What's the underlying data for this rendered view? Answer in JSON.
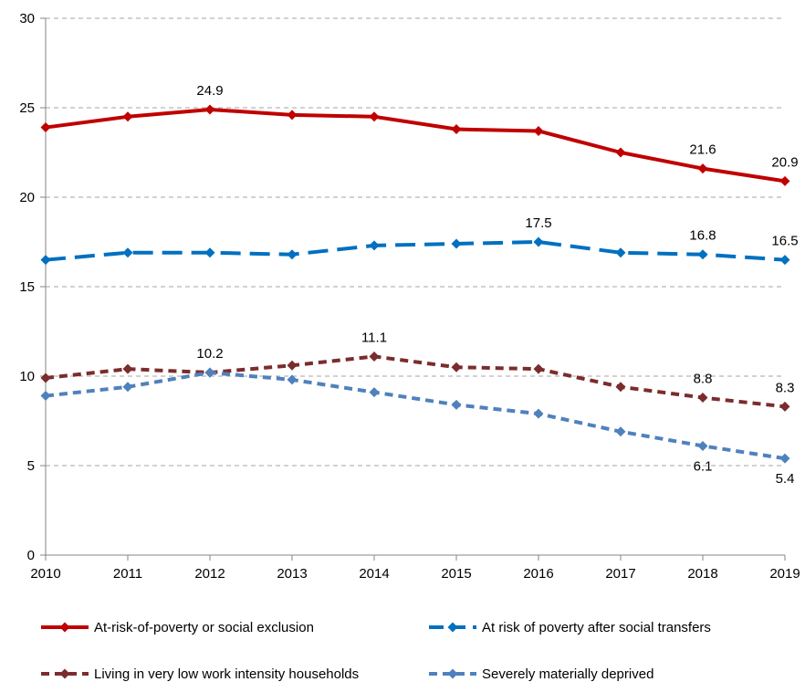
{
  "chart_data": {
    "type": "line",
    "title": "",
    "xlabel": "",
    "ylabel": "",
    "x": [
      "2010",
      "2011",
      "2012",
      "2013",
      "2014",
      "2015",
      "2016",
      "2017",
      "2018",
      "2019"
    ],
    "ylim": [
      0,
      30
    ],
    "yticks": [
      "0",
      "5",
      "10",
      "15",
      "20",
      "25",
      "30"
    ],
    "grid": "horizontal dashed",
    "legend_position": "bottom",
    "series": [
      {
        "name": "At-risk-of-poverty or social exclusion",
        "values": [
          23.9,
          24.5,
          24.9,
          24.6,
          24.5,
          23.8,
          23.7,
          22.5,
          21.6,
          20.9
        ],
        "color": "#C00000",
        "style": "solid",
        "labels": [
          {
            "index": 2,
            "text": "24.9",
            "position": "above"
          },
          {
            "index": 8,
            "text": "21.6",
            "position": "above"
          },
          {
            "index": 9,
            "text": "20.9",
            "position": "above"
          }
        ]
      },
      {
        "name": "At risk of poverty after social transfers",
        "values": [
          16.5,
          16.9,
          16.9,
          16.8,
          17.3,
          17.4,
          17.5,
          16.9,
          16.8,
          16.5
        ],
        "color": "#0070C0",
        "style": "long-dash",
        "labels": [
          {
            "index": 6,
            "text": "17.5",
            "position": "above"
          },
          {
            "index": 8,
            "text": "16.8",
            "position": "above"
          },
          {
            "index": 9,
            "text": "16.5",
            "position": "above"
          }
        ]
      },
      {
        "name": "Living in very low work intensity households",
        "values": [
          9.9,
          10.4,
          10.2,
          10.6,
          11.1,
          10.5,
          10.4,
          9.4,
          8.8,
          8.3
        ],
        "color": "#7B2C2C",
        "style": "short-dash",
        "labels": [
          {
            "index": 2,
            "text": "10.2",
            "position": "above"
          },
          {
            "index": 4,
            "text": "11.1",
            "position": "above"
          },
          {
            "index": 8,
            "text": "8.8",
            "position": "above"
          },
          {
            "index": 9,
            "text": "8.3",
            "position": "above"
          }
        ]
      },
      {
        "name": "Severely materially deprived",
        "values": [
          8.9,
          9.4,
          10.2,
          9.8,
          9.1,
          8.4,
          7.9,
          6.9,
          6.1,
          5.4
        ],
        "color": "#4F81BD",
        "style": "short-dash",
        "labels": [
          {
            "index": 8,
            "text": "6.1",
            "position": "below"
          },
          {
            "index": 9,
            "text": "5.4",
            "position": "below"
          }
        ]
      }
    ]
  }
}
